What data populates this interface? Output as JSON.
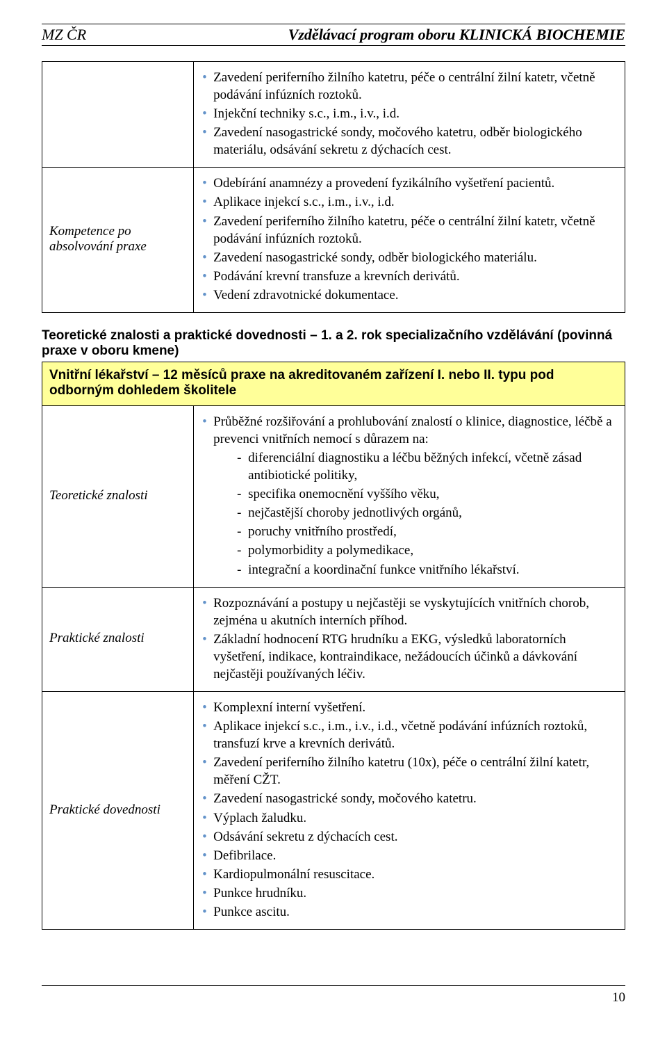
{
  "header": {
    "left": "MZ ČR",
    "right": "Vzdělávací program oboru KLINICKÁ BIOCHEMIE"
  },
  "table1": {
    "row1_bullets": [
      "Zavedení periferního žilního katetru, péče o centrální žilní katetr, včetně podávání infúzních roztoků.",
      "Injekční techniky s.c., i.m., i.v., i.d.",
      "Zavedení nasogastrické sondy, močového katetru, odběr biologického materiálu, odsávání sekretu z dýchacích cest."
    ],
    "row2_label": "Kompetence po absolvování praxe",
    "row2_bullets": [
      "Odebírání anamnézy a provedení fyzikálního vyšetření pacientů.",
      "Aplikace injekcí s.c., i.m., i.v., i.d.",
      "Zavedení periferního žilního katetru, péče o centrální žilní katetr, včetně podávání infúzních roztoků.",
      "Zavedení nasogastrické sondy, odběr biologického materiálu.",
      "Podávání krevní transfuze a krevních derivátů.",
      "Vedení zdravotnické dokumentace."
    ]
  },
  "section_heading": "Teoretické znalosti a praktické dovednosti – 1. a 2. rok specializačního vzdělávání (povinná praxe v oboru kmene)",
  "highlight": "Vnitřní lékařství – 12 měsíců praxe na akreditovaném zařízení I. nebo II. typu pod odborným dohledem školitele",
  "table2": {
    "row1_label": "Teoretické znalosti",
    "row1_intro": "Průběžné rozšiřování a prohlubování znalostí o klinice, diagnostice, léčbě a prevenci vnitřních nemocí s důrazem na:",
    "row1_dashes": [
      "diferenciální diagnostiku a léčbu běžných infekcí, včetně zásad antibiotické politiky,",
      "specifika onemocnění vyššího věku,",
      "nejčastější choroby jednotlivých orgánů,",
      "poruchy vnitřního prostředí,",
      "polymorbidity a polymedikace,",
      "integrační a koordinační funkce vnitřního lékařství."
    ],
    "row2_label": "Praktické znalosti",
    "row2_bullets": [
      "Rozpoznávání a postupy u nejčastěji se vyskytujících vnitřních chorob, zejména u akutních interních příhod.",
      "Základní hodnocení RTG hrudníku a EKG, výsledků laboratorních vyšetření, indikace, kontraindikace, nežádoucích účinků a dávkování nejčastěji používaných léčiv."
    ],
    "row3_label": "Praktické dovednosti",
    "row3_bullets": [
      "Komplexní interní vyšetření.",
      "Aplikace injekcí s.c., i.m., i.v., i.d., včetně podávání infúzních roztoků, transfuzí krve a krevních derivátů.",
      "Zavedení periferního žilního katetru (10x), péče o centrální žilní katetr, měření CŽT.",
      "Zavedení nasogastrické sondy, močového katetru.",
      "Výplach žaludku.",
      "Odsávání sekretu z dýchacích cest.",
      "Defibrilace.",
      "Kardiopulmonální resuscitace.",
      "Punkce hrudníku.",
      "Punkce ascitu."
    ]
  },
  "page_number": "10"
}
